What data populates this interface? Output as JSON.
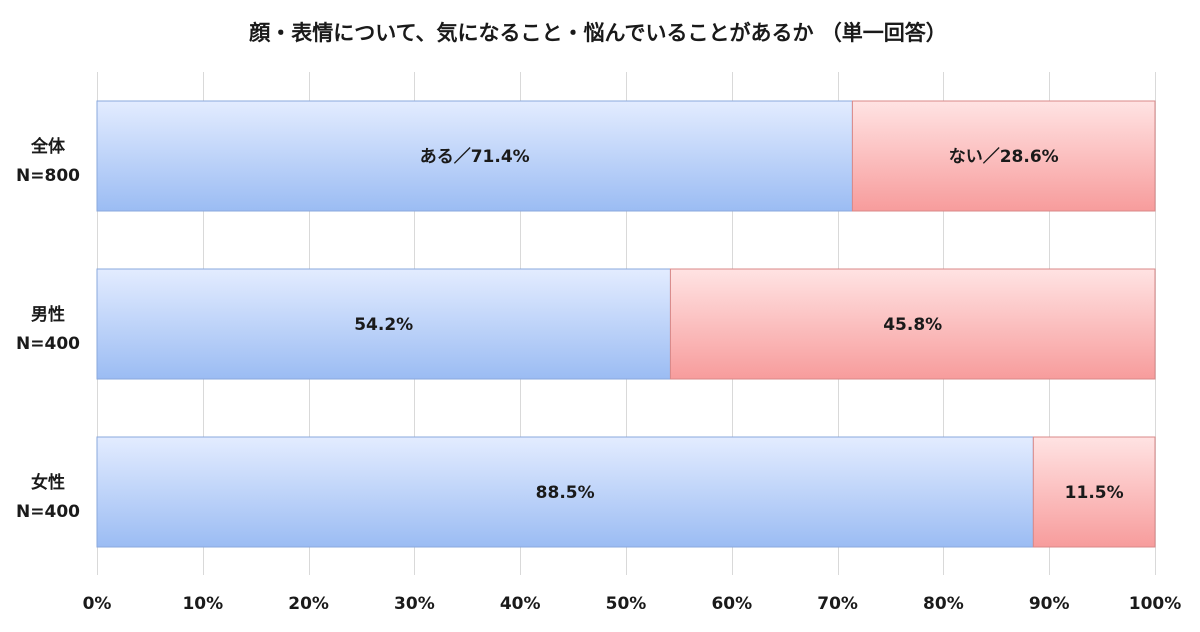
{
  "chart_data": {
    "type": "bar",
    "orientation": "horizontal",
    "stacked": true,
    "percent": true,
    "title": "顔・表情について、気になること・悩んでいることがあるか （単一回答）",
    "categories": [
      [
        "全体",
        "N=800"
      ],
      [
        "男性",
        "N=400"
      ],
      [
        "女性",
        "N=400"
      ]
    ],
    "series": [
      {
        "name": "ある",
        "values": [
          71.4,
          54.2,
          88.5
        ],
        "color_top": "#e3ecff",
        "color_bottom": "#9bbcf3",
        "stroke": "#8aa8dc"
      },
      {
        "name": "ない",
        "values": [
          28.6,
          45.8,
          11.5
        ],
        "color_top": "#ffe3e3",
        "color_bottom": "#f79c9c",
        "stroke": "#d88888"
      }
    ],
    "data_labels": [
      [
        "ある／71.4%",
        "54.2%",
        "88.5%"
      ],
      [
        "ない／28.6%",
        "45.8%",
        "11.5%"
      ]
    ],
    "xlim": [
      0,
      100
    ],
    "x_ticks": [
      "0%",
      "10%",
      "20%",
      "30%",
      "40%",
      "50%",
      "60%",
      "70%",
      "80%",
      "90%",
      "100%"
    ],
    "grid": true,
    "legend": "none"
  }
}
